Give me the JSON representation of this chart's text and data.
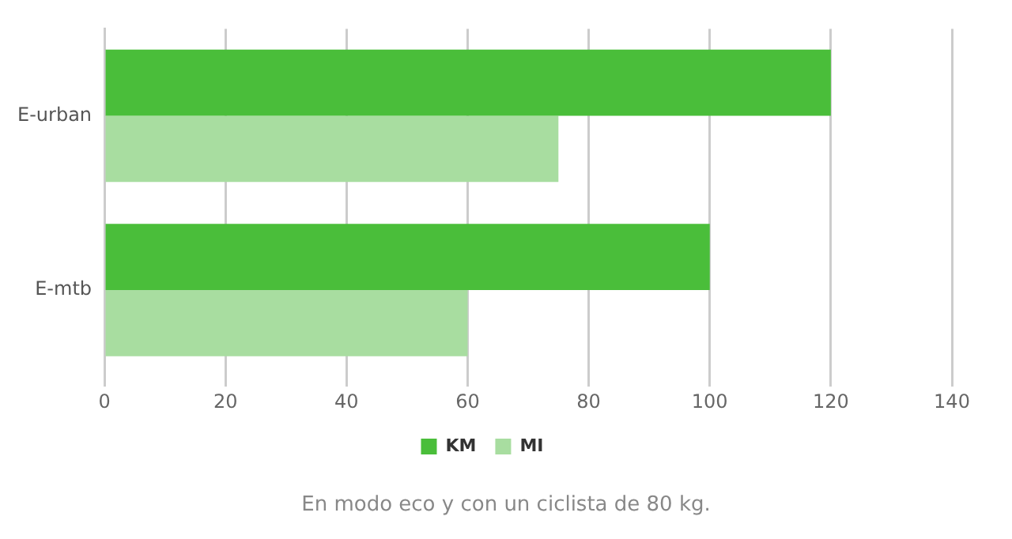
{
  "chart_data": {
    "type": "bar",
    "orientation": "horizontal",
    "categories": [
      "E-urban",
      "E-mtb"
    ],
    "series": [
      {
        "name": "KM",
        "color": "#4abe3a",
        "values": [
          120,
          100
        ]
      },
      {
        "name": "MI",
        "color": "#a8dda0",
        "values": [
          75,
          60
        ]
      }
    ],
    "xlim": [
      0,
      140
    ],
    "xticks": [
      0,
      20,
      40,
      60,
      80,
      100,
      120,
      140
    ],
    "grid": "x",
    "legend": "bottom",
    "annotations": [
      "En modo eco y con un ciclista de 80 kg."
    ]
  }
}
